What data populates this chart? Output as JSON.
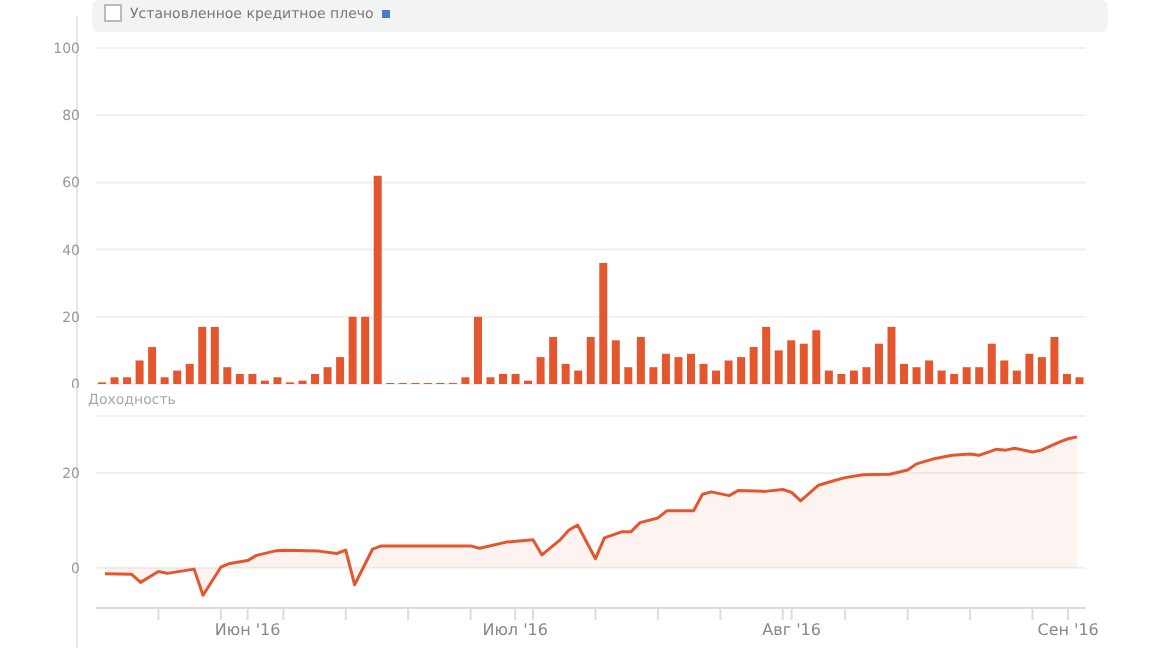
{
  "chart_data": [
    {
      "type": "bar",
      "annotations": [
        "Установленное кредитное плечо"
      ],
      "categories": [
        null,
        null,
        null,
        null,
        null,
        null,
        null,
        null,
        null,
        null,
        null,
        null,
        null,
        null,
        null,
        null,
        null,
        null,
        null,
        null,
        null,
        null,
        null,
        null,
        null,
        null,
        null,
        null,
        null,
        null,
        null,
        null,
        null,
        null,
        null,
        null,
        null,
        null,
        null,
        null,
        null,
        null,
        null,
        null,
        null,
        null,
        null,
        null,
        null,
        null,
        null,
        null,
        null,
        null,
        null,
        null,
        null,
        null,
        null,
        null,
        null,
        null,
        null,
        null,
        null,
        null,
        null,
        null,
        null,
        null,
        null,
        null,
        null,
        null,
        null,
        null,
        null,
        null,
        null
      ],
      "values": [
        0.5,
        2,
        2,
        7,
        11,
        2,
        4,
        6,
        17,
        17,
        5,
        3,
        3,
        1,
        2,
        0.5,
        1,
        3,
        5,
        8,
        20,
        20,
        62,
        0.3,
        0.3,
        0.3,
        0.3,
        0.3,
        0.3,
        2,
        20,
        2,
        3,
        3,
        1,
        8,
        14,
        6,
        4,
        14,
        36,
        13,
        5,
        14,
        5,
        9,
        8,
        9,
        6,
        4,
        7,
        8,
        11,
        17,
        10,
        13,
        12,
        16,
        4,
        3,
        4,
        5,
        12,
        17,
        6,
        5,
        7,
        4,
        3,
        5,
        5,
        12,
        7,
        4,
        9,
        8,
        14,
        3,
        2
      ],
      "color": "#e4572e",
      "ylim": [
        0,
        100
      ],
      "yticks": [
        0,
        20,
        40,
        60,
        80,
        100
      ],
      "grid": "y",
      "tick_labels": "y"
    },
    {
      "type": "area",
      "ylabel": "Доходность",
      "x": [
        "2016-05-16",
        "2016-05-19",
        "2016-05-20",
        "2016-05-22",
        "2016-05-23",
        "2016-05-26",
        "2016-05-27",
        "2016-05-29",
        "2016-05-30",
        "2016-06-01",
        "2016-06-02",
        "2016-06-04",
        "2016-06-05",
        "2016-06-09",
        "2016-06-11",
        "2016-06-12",
        "2016-06-13",
        "2016-06-15",
        "2016-06-16",
        "2016-06-26",
        "2016-06-27",
        "2016-06-30",
        "2016-07-03",
        "2016-07-04",
        "2016-07-06",
        "2016-07-07",
        "2016-07-08",
        "2016-07-10",
        "2016-07-11",
        "2016-07-13",
        "2016-07-14",
        "2016-07-15",
        "2016-07-17",
        "2016-07-18",
        "2016-07-21",
        "2016-07-22",
        "2016-07-23",
        "2016-07-25",
        "2016-07-26",
        "2016-07-29",
        "2016-07-31",
        "2016-08-01",
        "2016-08-02",
        "2016-08-04",
        "2016-08-06",
        "2016-08-07",
        "2016-08-09",
        "2016-08-12",
        "2016-08-14",
        "2016-08-15",
        "2016-08-17",
        "2016-08-19",
        "2016-08-21",
        "2016-08-22",
        "2016-08-24",
        "2016-08-25",
        "2016-08-26",
        "2016-08-28",
        "2016-08-29",
        "2016-08-31",
        "2016-09-01",
        "2016-09-02"
      ],
      "values": [
        -1.3,
        -1.4,
        -3.1,
        -0.8,
        -1.2,
        -0.3,
        -5.8,
        0.1,
        0.9,
        1.5,
        2.6,
        3.5,
        3.7,
        3.5,
        3,
        3.7,
        -3.6,
        3.9,
        4.6,
        4.6,
        4.1,
        5.4,
        5.9,
        2.7,
        5.8,
        7.9,
        9,
        1.9,
        6.3,
        7.6,
        7.6,
        9.5,
        10.5,
        12,
        12,
        15.5,
        16,
        15.2,
        16.3,
        16.1,
        16.5,
        15.9,
        14.1,
        17.4,
        18.5,
        19,
        19.6,
        19.7,
        20.6,
        21.9,
        23,
        23.7,
        24,
        23.7,
        25,
        24.8,
        25.2,
        24.4,
        24.8,
        26.5,
        27.2,
        27.6
      ],
      "color": "#e4572e",
      "ylim": [
        -8.5,
        32
      ],
      "yticks": [
        0,
        20
      ],
      "xlim": [
        "2016-05-15",
        "2016-09-03"
      ],
      "xticks": [
        {
          "value": "2016-05-22",
          "label": null
        },
        {
          "value": "2016-05-29",
          "label": null
        },
        {
          "value": "2016-06-01",
          "label": "Июн '16"
        },
        {
          "value": "2016-06-05",
          "label": null
        },
        {
          "value": "2016-06-12",
          "label": null
        },
        {
          "value": "2016-06-19",
          "label": null
        },
        {
          "value": "2016-06-26",
          "label": null
        },
        {
          "value": "2016-07-01",
          "label": "Июл '16"
        },
        {
          "value": "2016-07-03",
          "label": null
        },
        {
          "value": "2016-07-10",
          "label": null
        },
        {
          "value": "2016-07-17",
          "label": null
        },
        {
          "value": "2016-07-24",
          "label": null
        },
        {
          "value": "2016-07-31",
          "label": null
        },
        {
          "value": "2016-08-01",
          "label": "Авг '16"
        },
        {
          "value": "2016-08-07",
          "label": null
        },
        {
          "value": "2016-08-14",
          "label": null
        },
        {
          "value": "2016-08-21",
          "label": null
        },
        {
          "value": "2016-08-28",
          "label": null
        },
        {
          "value": "2016-09-01",
          "label": "Сен '16"
        }
      ],
      "grid": "y",
      "marker": "none"
    }
  ]
}
